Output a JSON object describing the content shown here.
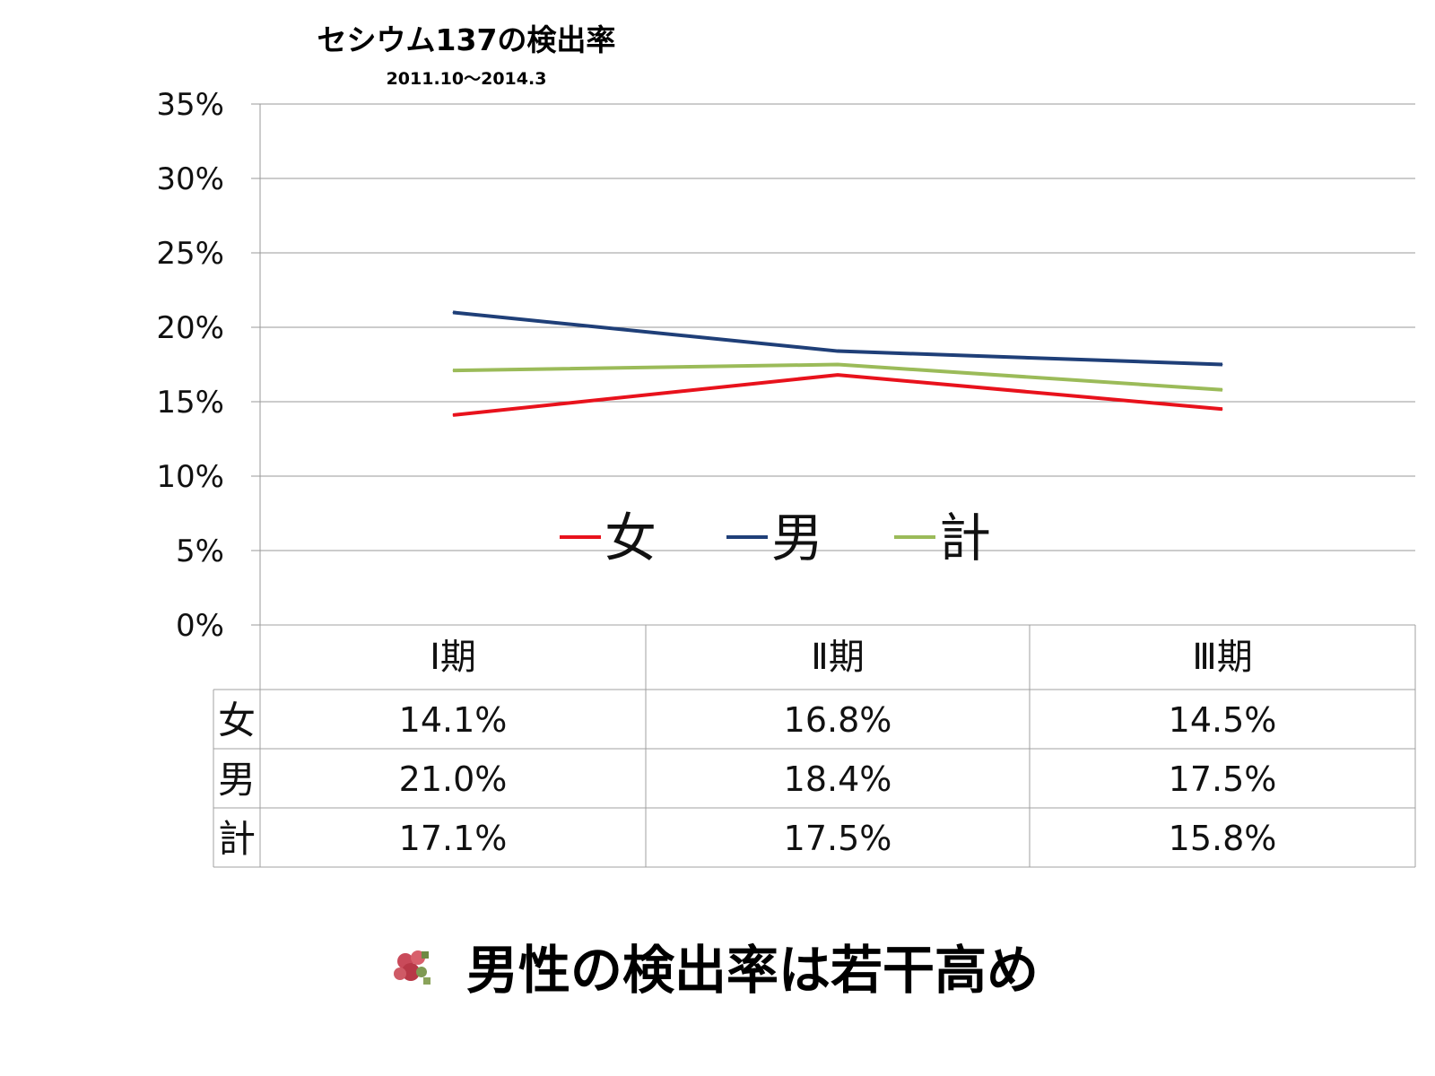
{
  "chart_data": {
    "type": "line",
    "title": "セシウム137の検出率",
    "subtitle": "2011.10～2014.3",
    "categories": [
      "Ⅰ期",
      "Ⅱ期",
      "Ⅲ期"
    ],
    "ylim": [
      0,
      35
    ],
    "y_ticks": [
      0,
      5,
      10,
      15,
      20,
      25,
      30,
      35
    ],
    "y_tick_labels": [
      "0%",
      "5%",
      "10%",
      "15%",
      "20%",
      "25%",
      "30%",
      "35%"
    ],
    "grid": true,
    "legend_position": "center",
    "series": [
      {
        "name": "女",
        "color": "#e8121c",
        "values": [
          14.1,
          16.8,
          14.5
        ],
        "labels": [
          "14.1%",
          "16.8%",
          "14.5%"
        ]
      },
      {
        "name": "男",
        "color": "#1f3f78",
        "values": [
          21.0,
          18.4,
          17.5
        ],
        "labels": [
          "21.0%",
          "18.4%",
          "17.5%"
        ]
      },
      {
        "name": "計",
        "color": "#9bbb59",
        "values": [
          17.1,
          17.5,
          15.8
        ],
        "labels": [
          "17.1%",
          "17.5%",
          "15.8%"
        ]
      }
    ]
  },
  "conclusion": {
    "text": "男性の検出率は若干高め",
    "bullet_icon": "flower-bullet-icon"
  }
}
